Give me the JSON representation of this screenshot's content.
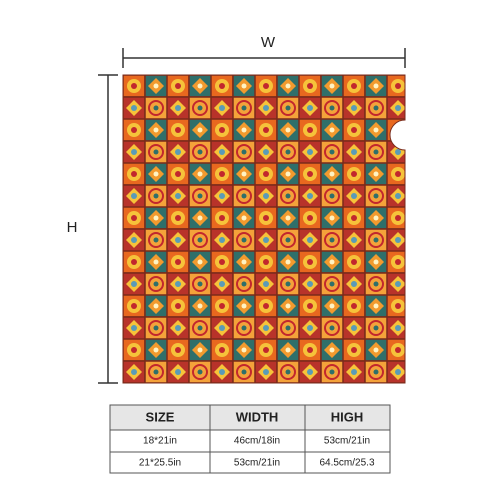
{
  "dimensions": {
    "width_label": "W",
    "height_label": "H"
  },
  "table": {
    "header": [
      "SIZE",
      "WIDTH",
      "HIGH"
    ],
    "rows": [
      [
        "18*21in",
        "46cm/18in",
        "53cm/21in"
      ],
      [
        "21*25.5in",
        "53cm/21in",
        "64.5cm/25.3"
      ]
    ]
  }
}
